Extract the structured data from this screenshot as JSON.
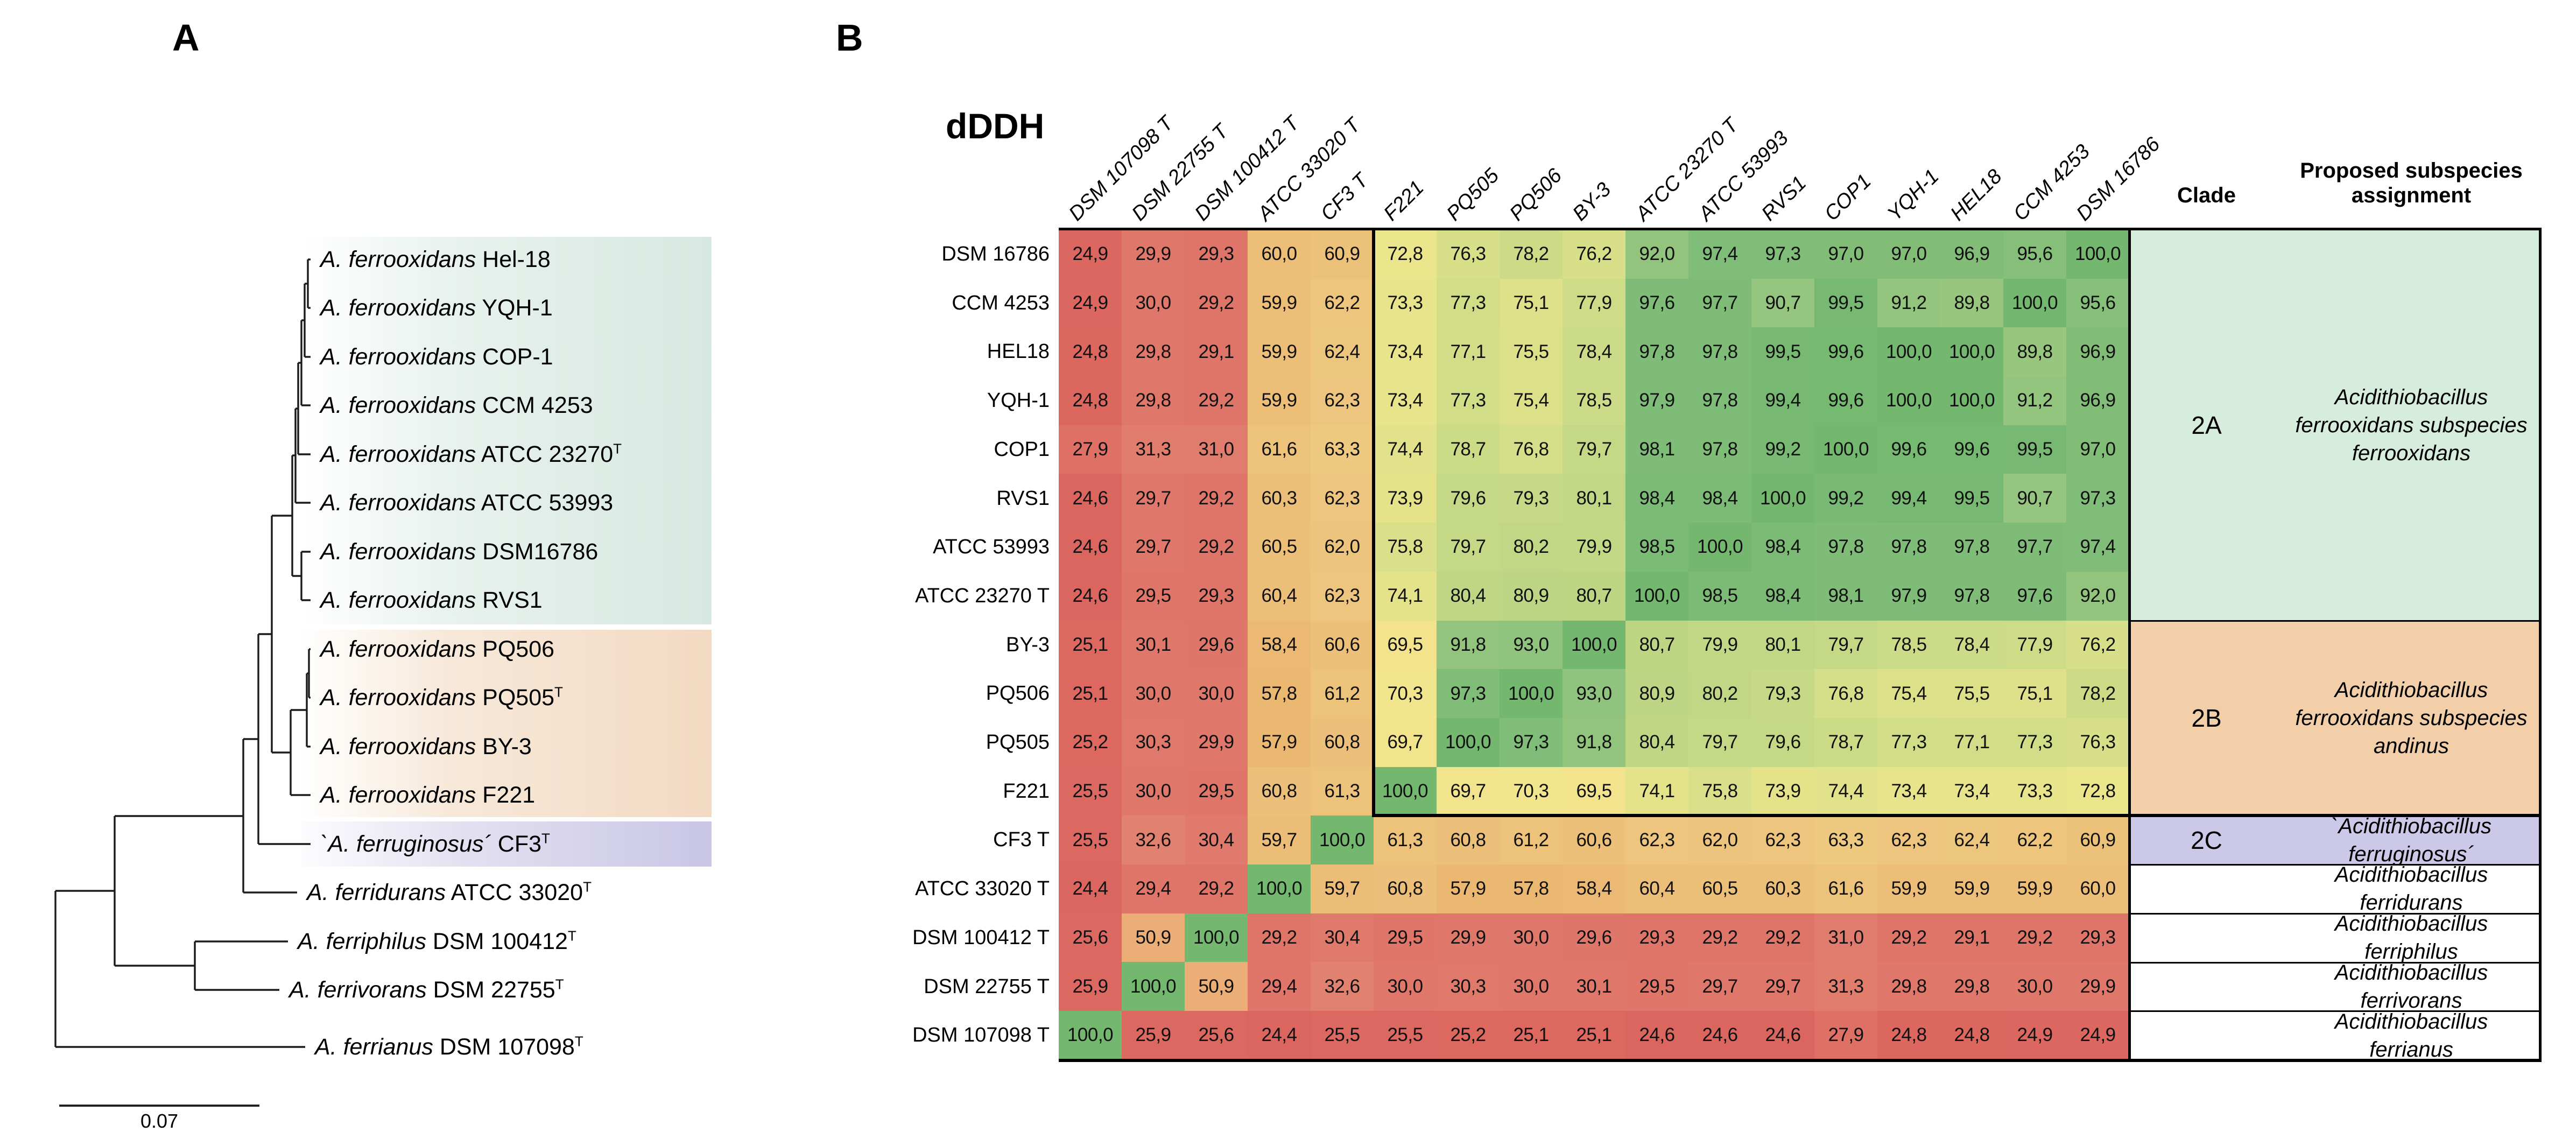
{
  "figure": {
    "panel_a_letter": "A",
    "panel_b_letter": "B"
  },
  "panel_a": {
    "scale_bar_label": "0.07",
    "tips": [
      {
        "species": "A. ferrooxidans",
        "strain": "Hel-18",
        "type_strain": false
      },
      {
        "species": "A. ferrooxidans",
        "strain": "YQH-1",
        "type_strain": false
      },
      {
        "species": "A. ferrooxidans",
        "strain": "COP-1",
        "type_strain": false
      },
      {
        "species": "A. ferrooxidans",
        "strain": "CCM 4253",
        "type_strain": false
      },
      {
        "species": "A. ferrooxidans",
        "strain": "ATCC 23270",
        "type_strain": true
      },
      {
        "species": "A. ferrooxidans",
        "strain": "ATCC 53993",
        "type_strain": false
      },
      {
        "species": "A. ferrooxidans",
        "strain": "DSM16786",
        "type_strain": false
      },
      {
        "species": "A. ferrooxidans",
        "strain": "RVS1",
        "type_strain": false
      },
      {
        "species": "A. ferrooxidans",
        "strain": "PQ506",
        "type_strain": false
      },
      {
        "species": "A. ferrooxidans",
        "strain": "PQ505",
        "type_strain": true
      },
      {
        "species": "A. ferrooxidans",
        "strain": "BY-3",
        "type_strain": false
      },
      {
        "species": "A. ferrooxidans",
        "strain": "F221",
        "type_strain": false
      },
      {
        "species": "`A. ferruginosus´",
        "strain": "CF3",
        "type_strain": true
      },
      {
        "species": "A. ferridurans",
        "strain": "ATCC 33020",
        "type_strain": true
      },
      {
        "species": "A. ferriphilus",
        "strain": "DSM 100412",
        "type_strain": true
      },
      {
        "species": "A. ferrivorans",
        "strain": "DSM 22755",
        "type_strain": true
      },
      {
        "species": "A. ferrianus",
        "strain": "DSM 107098",
        "type_strain": true
      }
    ]
  },
  "panel_b": {
    "title": "dDDH",
    "clade_header": "Clade",
    "assignment_header": "Proposed subspecies assignment",
    "groups": [
      {
        "clade": "2A",
        "assignment": "Acidithiobacillus ferrooxidans subspecies ferrooxidans",
        "row_span": 8,
        "color": "#d6ecdc"
      },
      {
        "clade": "2B",
        "assignment": "Acidithiobacillus ferrooxidans subspecies andinus",
        "row_span": 4,
        "color": "#f2cfa8"
      },
      {
        "clade": "2C",
        "assignment": "`Acidithiobacillus ferruginosus´",
        "row_span": 1,
        "color": "#ccc9e8"
      },
      {
        "clade": "",
        "assignment": "Acidithiobacillus ferridurans",
        "row_span": 1,
        "color": "#ffffff"
      },
      {
        "clade": "",
        "assignment": "Acidithiobacillus ferriphilus",
        "row_span": 1,
        "color": "#ffffff"
      },
      {
        "clade": "",
        "assignment": "Acidithiobacillus ferrivorans",
        "row_span": 1,
        "color": "#ffffff"
      },
      {
        "clade": "",
        "assignment": "Acidithiobacillus ferrianus",
        "row_span": 1,
        "color": "#ffffff"
      }
    ]
  },
  "chart_data": {
    "type": "heatmap",
    "title": "dDDH",
    "value_range": [
      24.4,
      100.0
    ],
    "colormap": "RdYlGn",
    "decimal_separator": ",",
    "columns": [
      "DSM 107098 T",
      "DSM 22755 T",
      "DSM 100412 T",
      "ATCC 33020 T",
      "CF3 T",
      "F221",
      "PQ505",
      "PQ506",
      "BY-3",
      "ATCC 23270 T",
      "ATCC 53993",
      "RVS1",
      "COP1",
      "YQH-1",
      "HEL18",
      "CCM 4253",
      "DSM 16786"
    ],
    "rows": [
      "DSM 16786",
      "CCM 4253",
      "HEL18",
      "YQH-1",
      "COP1",
      "RVS1",
      "ATCC 53993",
      "ATCC 23270 T",
      "BY-3",
      "PQ506",
      "PQ505",
      "F221",
      "CF3 T",
      "ATCC 33020 T",
      "DSM 100412 T",
      "DSM 22755 T",
      "DSM 107098 T"
    ],
    "values": [
      [
        24.9,
        29.9,
        29.3,
        60.0,
        60.9,
        72.8,
        76.3,
        78.2,
        76.2,
        92.0,
        97.4,
        97.3,
        97.0,
        97.0,
        96.9,
        95.6,
        100.0
      ],
      [
        24.9,
        30.0,
        29.2,
        59.9,
        62.2,
        73.3,
        77.3,
        75.1,
        77.9,
        97.6,
        97.7,
        90.7,
        99.5,
        91.2,
        89.8,
        100.0,
        95.6
      ],
      [
        24.8,
        29.8,
        29.1,
        59.9,
        62.4,
        73.4,
        77.1,
        75.5,
        78.4,
        97.8,
        97.8,
        99.5,
        99.6,
        100.0,
        100.0,
        89.8,
        96.9
      ],
      [
        24.8,
        29.8,
        29.2,
        59.9,
        62.3,
        73.4,
        77.3,
        75.4,
        78.5,
        97.9,
        97.8,
        99.4,
        99.6,
        100.0,
        100.0,
        91.2,
        96.9
      ],
      [
        27.9,
        31.3,
        31.0,
        61.6,
        63.3,
        74.4,
        78.7,
        76.8,
        79.7,
        98.1,
        97.8,
        99.2,
        100.0,
        99.6,
        99.6,
        99.5,
        97.0
      ],
      [
        24.6,
        29.7,
        29.2,
        60.3,
        62.3,
        73.9,
        79.6,
        79.3,
        80.1,
        98.4,
        98.4,
        100.0,
        99.2,
        99.4,
        99.5,
        90.7,
        97.3
      ],
      [
        24.6,
        29.7,
        29.2,
        60.5,
        62.0,
        75.8,
        79.7,
        80.2,
        79.9,
        98.5,
        100.0,
        98.4,
        97.8,
        97.8,
        97.8,
        97.7,
        97.4
      ],
      [
        24.6,
        29.5,
        29.3,
        60.4,
        62.3,
        74.1,
        80.4,
        80.9,
        80.7,
        100.0,
        98.5,
        98.4,
        98.1,
        97.9,
        97.8,
        97.6,
        92.0
      ],
      [
        25.1,
        30.1,
        29.6,
        58.4,
        60.6,
        69.5,
        91.8,
        93.0,
        100.0,
        80.7,
        79.9,
        80.1,
        79.7,
        78.5,
        78.4,
        77.9,
        76.2
      ],
      [
        25.1,
        30.0,
        30.0,
        57.8,
        61.2,
        70.3,
        97.3,
        100.0,
        93.0,
        80.9,
        80.2,
        79.3,
        76.8,
        75.4,
        75.5,
        75.1,
        78.2
      ],
      [
        25.2,
        30.3,
        29.9,
        57.9,
        60.8,
        69.7,
        100.0,
        97.3,
        91.8,
        80.4,
        79.7,
        79.6,
        78.7,
        77.3,
        77.1,
        77.3,
        76.3
      ],
      [
        25.5,
        30.0,
        29.5,
        60.8,
        61.3,
        100.0,
        69.7,
        70.3,
        69.5,
        74.1,
        75.8,
        73.9,
        74.4,
        73.4,
        73.4,
        73.3,
        72.8
      ],
      [
        25.5,
        32.6,
        30.4,
        59.7,
        100.0,
        61.3,
        60.8,
        61.2,
        60.6,
        62.3,
        62.0,
        62.3,
        63.3,
        62.3,
        62.4,
        62.2,
        60.9
      ],
      [
        24.4,
        29.4,
        29.2,
        100.0,
        59.7,
        60.8,
        57.9,
        57.8,
        58.4,
        60.4,
        60.5,
        60.3,
        61.6,
        59.9,
        59.9,
        59.9,
        60.0
      ],
      [
        25.6,
        50.9,
        100.0,
        29.2,
        30.4,
        29.5,
        29.9,
        30.0,
        29.6,
        29.3,
        29.2,
        29.2,
        31.0,
        29.2,
        29.1,
        29.2,
        29.3
      ],
      [
        25.9,
        100.0,
        50.9,
        29.4,
        32.6,
        30.0,
        30.3,
        30.0,
        30.1,
        29.5,
        29.7,
        29.7,
        31.3,
        29.8,
        29.8,
        30.0,
        29.9
      ],
      [
        100.0,
        25.9,
        25.6,
        24.4,
        25.5,
        25.5,
        25.2,
        25.1,
        25.1,
        24.6,
        24.6,
        24.6,
        27.9,
        24.8,
        24.8,
        24.9,
        24.9
      ]
    ]
  }
}
